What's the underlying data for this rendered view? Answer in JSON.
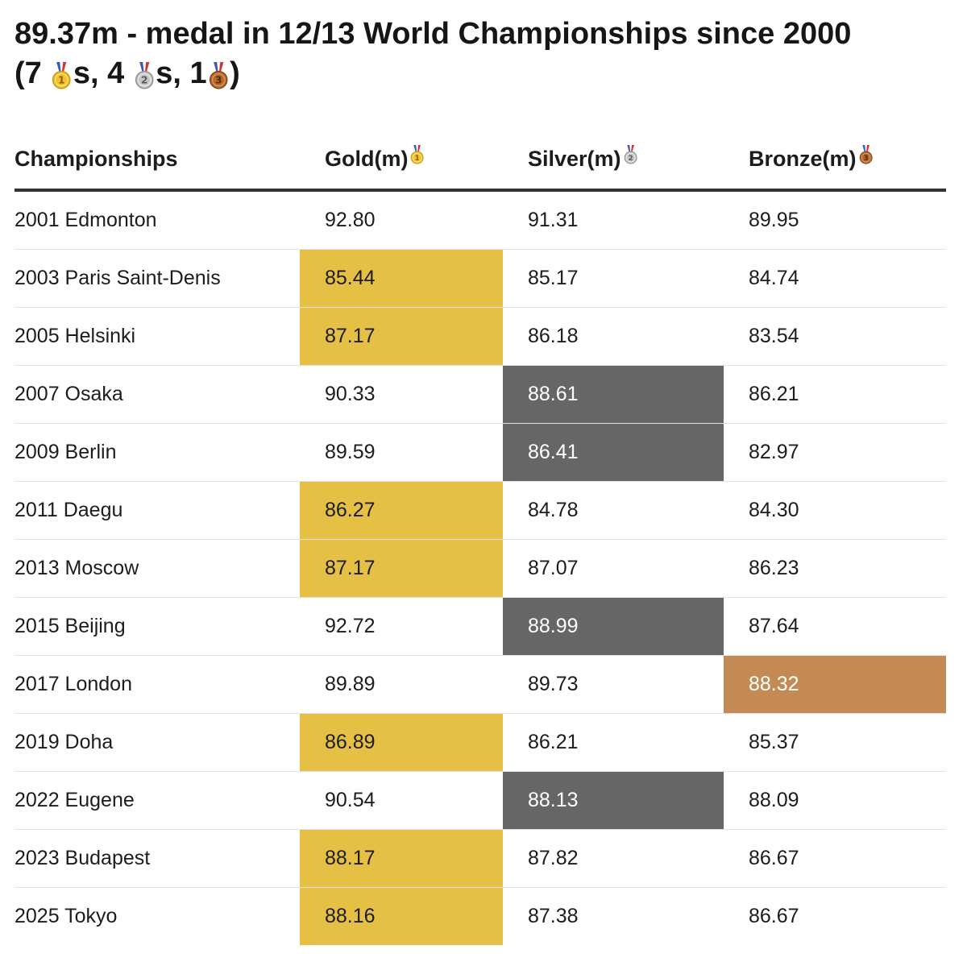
{
  "title": {
    "line1": "89.37m - medal in 12/13 World Championships since 2000",
    "open": "(7",
    "after_gold": "s, 4",
    "after_silver": "s, 1",
    "close": ")"
  },
  "colors": {
    "gold": "#e6c044",
    "silver": "#666666",
    "bronze": "#c48a53",
    "text": "#1c1c1c"
  },
  "icons": {
    "gold": "gold-medal-icon",
    "silver": "silver-medal-icon",
    "bronze": "bronze-medal-icon"
  },
  "chart_data": {
    "type": "table",
    "title": "89.37m - medal in 12/13 World Championships since 2000 (7 gold, 4 silver, 1 bronze)",
    "columns": [
      "Championships",
      "Gold(m)",
      "Silver(m)",
      "Bronze(m)"
    ],
    "rows": [
      {
        "championship": "2001 Edmonton",
        "gold": "92.80",
        "silver": "91.31",
        "bronze": "89.95",
        "highlight": null
      },
      {
        "championship": "2003 Paris Saint-Denis",
        "gold": "85.44",
        "silver": "85.17",
        "bronze": "84.74",
        "highlight": "gold"
      },
      {
        "championship": "2005 Helsinki",
        "gold": "87.17",
        "silver": "86.18",
        "bronze": "83.54",
        "highlight": "gold"
      },
      {
        "championship": "2007 Osaka",
        "gold": "90.33",
        "silver": "88.61",
        "bronze": "86.21",
        "highlight": "silver"
      },
      {
        "championship": "2009 Berlin",
        "gold": "89.59",
        "silver": "86.41",
        "bronze": "82.97",
        "highlight": "silver"
      },
      {
        "championship": "2011 Daegu",
        "gold": "86.27",
        "silver": "84.78",
        "bronze": "84.30",
        "highlight": "gold"
      },
      {
        "championship": "2013 Moscow",
        "gold": "87.17",
        "silver": "87.07",
        "bronze": "86.23",
        "highlight": "gold"
      },
      {
        "championship": "2015 Beijing",
        "gold": "92.72",
        "silver": "88.99",
        "bronze": "87.64",
        "highlight": "silver"
      },
      {
        "championship": "2017 London",
        "gold": "89.89",
        "silver": "89.73",
        "bronze": "88.32",
        "highlight": "bronze"
      },
      {
        "championship": "2019 Doha",
        "gold": "86.89",
        "silver": "86.21",
        "bronze": "85.37",
        "highlight": "gold"
      },
      {
        "championship": "2022 Eugene",
        "gold": "90.54",
        "silver": "88.13",
        "bronze": "88.09",
        "highlight": "silver"
      },
      {
        "championship": "2023 Budapest",
        "gold": "88.17",
        "silver": "87.82",
        "bronze": "86.67",
        "highlight": "gold"
      },
      {
        "championship": "2025 Tokyo",
        "gold": "88.16",
        "silver": "87.38",
        "bronze": "86.67",
        "highlight": "gold"
      }
    ]
  }
}
